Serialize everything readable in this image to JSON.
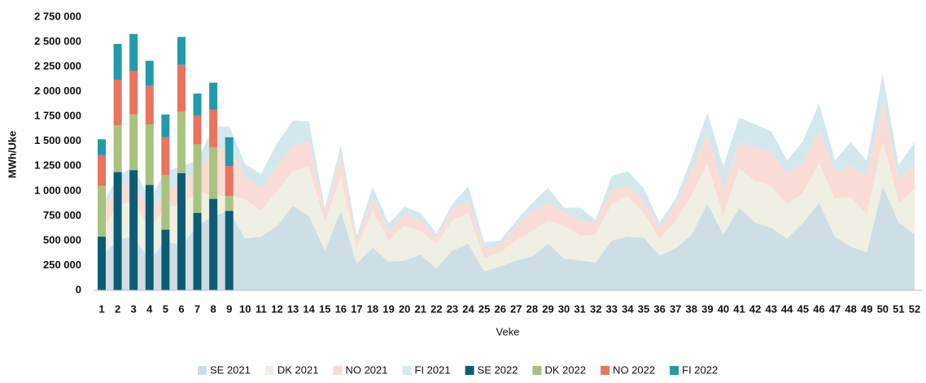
{
  "chart_data": {
    "type": "combo",
    "y_label": "MWh/Uke",
    "x_label": "Veke",
    "categories": [
      "1",
      "2",
      "3",
      "4",
      "5",
      "6",
      "7",
      "8",
      "9",
      "10",
      "11",
      "12",
      "13",
      "14",
      "15",
      "16",
      "17",
      "18",
      "19",
      "20",
      "21",
      "22",
      "23",
      "24",
      "25",
      "26",
      "27",
      "28",
      "29",
      "30",
      "31",
      "32",
      "33",
      "34",
      "35",
      "36",
      "37",
      "38",
      "39",
      "40",
      "41",
      "42",
      "43",
      "44",
      "45",
      "46",
      "47",
      "48",
      "49",
      "50",
      "51",
      "52"
    ],
    "ylim": [
      0,
      2750000
    ],
    "yticks": [
      0,
      {
        "value": 250000,
        "label": "250 000"
      },
      {
        "value": 500000,
        "label": "500 000"
      },
      {
        "value": 750000,
        "label": "750 000"
      },
      {
        "value": 1000000,
        "label": "1 000 000"
      },
      {
        "value": 1250000,
        "label": "1 250 000"
      },
      {
        "value": 1500000,
        "label": "1 500 000"
      },
      {
        "value": 1750000,
        "label": "1 750 000"
      },
      {
        "value": 2000000,
        "label": "2 000 000"
      },
      {
        "value": 2250000,
        "label": "2 250 000"
      },
      {
        "value": 2500000,
        "label": "2 500 000"
      },
      {
        "value": 2750000,
        "label": "2 750 000"
      }
    ],
    "legend": "bottom",
    "series": [
      {
        "name": "SE 2021",
        "kind": "area",
        "color": "#cddfe5",
        "values": [
          350000,
          500000,
          550000,
          300000,
          500000,
          450000,
          650000,
          750000,
          800000,
          520000,
          540000,
          650000,
          850000,
          750000,
          400000,
          800000,
          270000,
          430000,
          290000,
          300000,
          360000,
          220000,
          400000,
          470000,
          190000,
          240000,
          300000,
          340000,
          470000,
          320000,
          300000,
          280000,
          500000,
          540000,
          530000,
          350000,
          420000,
          560000,
          870000,
          560000,
          830000,
          680000,
          630000,
          520000,
          680000,
          880000,
          540000,
          440000,
          380000,
          1050000,
          680000,
          560000
        ]
      },
      {
        "name": "DK 2021",
        "kind": "area",
        "color": "#efefe3",
        "values": [
          250000,
          350000,
          350000,
          300000,
          350000,
          400000,
          350000,
          200000,
          150000,
          400000,
          260000,
          350000,
          350000,
          500000,
          280000,
          350000,
          160000,
          370000,
          210000,
          350000,
          240000,
          250000,
          300000,
          310000,
          130000,
          140000,
          200000,
          260000,
          230000,
          330000,
          250000,
          280000,
          370000,
          410000,
          250000,
          170000,
          280000,
          390000,
          400000,
          190000,
          400000,
          420000,
          420000,
          350000,
          300000,
          400000,
          380000,
          500000,
          380000,
          450000,
          200000,
          460000
        ]
      },
      {
        "name": "NO 2021",
        "kind": "area",
        "color": "#fadcd6",
        "values": [
          200000,
          200000,
          200000,
          200000,
          150000,
          250000,
          200000,
          450000,
          500000,
          230000,
          220000,
          250000,
          250000,
          250000,
          100000,
          200000,
          70000,
          120000,
          100000,
          120000,
          100000,
          60000,
          120000,
          120000,
          100000,
          70000,
          150000,
          200000,
          180000,
          130000,
          150000,
          120000,
          140000,
          100000,
          120000,
          100000,
          150000,
          250000,
          310000,
          250000,
          270000,
          330000,
          350000,
          300000,
          310000,
          320000,
          280000,
          310000,
          390000,
          400000,
          240000,
          250000
        ]
      },
      {
        "name": "FI 2021",
        "kind": "area",
        "color": "#d3e8ec",
        "values": [
          50000,
          100000,
          150000,
          100000,
          200000,
          150000,
          100000,
          250000,
          200000,
          120000,
          150000,
          230000,
          260000,
          200000,
          40000,
          110000,
          50000,
          120000,
          70000,
          70000,
          80000,
          40000,
          50000,
          150000,
          60000,
          50000,
          50000,
          80000,
          150000,
          50000,
          130000,
          30000,
          140000,
          150000,
          130000,
          60000,
          70000,
          130000,
          210000,
          250000,
          240000,
          240000,
          200000,
          140000,
          210000,
          280000,
          110000,
          240000,
          150000,
          280000,
          140000,
          220000
        ]
      },
      {
        "name": "SE 2022",
        "kind": "bar",
        "color": "#0d5c74",
        "values": [
          540000,
          1190000,
          1210000,
          1060000,
          610000,
          1180000,
          780000,
          920000,
          800000,
          null,
          null,
          null,
          null,
          null,
          null,
          null,
          null,
          null,
          null,
          null,
          null,
          null,
          null,
          null,
          null,
          null,
          null,
          null,
          null,
          null,
          null,
          null,
          null,
          null,
          null,
          null,
          null,
          null,
          null,
          null,
          null,
          null,
          null,
          null,
          null,
          null,
          null,
          null,
          null,
          null,
          null,
          null
        ]
      },
      {
        "name": "DK 2022",
        "kind": "bar",
        "color": "#a8c27f",
        "values": [
          510000,
          470000,
          560000,
          610000,
          550000,
          620000,
          690000,
          520000,
          150000,
          null,
          null,
          null,
          null,
          null,
          null,
          null,
          null,
          null,
          null,
          null,
          null,
          null,
          null,
          null,
          null,
          null,
          null,
          null,
          null,
          null,
          null,
          null,
          null,
          null,
          null,
          null,
          null,
          null,
          null,
          null,
          null,
          null,
          null,
          null,
          null,
          null,
          null,
          null,
          null,
          null,
          null,
          null
        ]
      },
      {
        "name": "NO 2022",
        "kind": "bar",
        "color": "#e8735e",
        "values": [
          310000,
          460000,
          440000,
          390000,
          380000,
          470000,
          290000,
          380000,
          300000,
          null,
          null,
          null,
          null,
          null,
          null,
          null,
          null,
          null,
          null,
          null,
          null,
          null,
          null,
          null,
          null,
          null,
          null,
          null,
          null,
          null,
          null,
          null,
          null,
          null,
          null,
          null,
          null,
          null,
          null,
          null,
          null,
          null,
          null,
          null,
          null,
          null,
          null,
          null,
          null,
          null,
          null,
          null
        ]
      },
      {
        "name": "FI 2022",
        "kind": "bar",
        "color": "#229aaa",
        "values": [
          160000,
          360000,
          370000,
          250000,
          230000,
          280000,
          220000,
          270000,
          290000,
          null,
          null,
          null,
          null,
          null,
          null,
          null,
          null,
          null,
          null,
          null,
          null,
          null,
          null,
          null,
          null,
          null,
          null,
          null,
          null,
          null,
          null,
          null,
          null,
          null,
          null,
          null,
          null,
          null,
          null,
          null,
          null,
          null,
          null,
          null,
          null,
          null,
          null,
          null,
          null,
          null,
          null,
          null
        ]
      }
    ]
  }
}
